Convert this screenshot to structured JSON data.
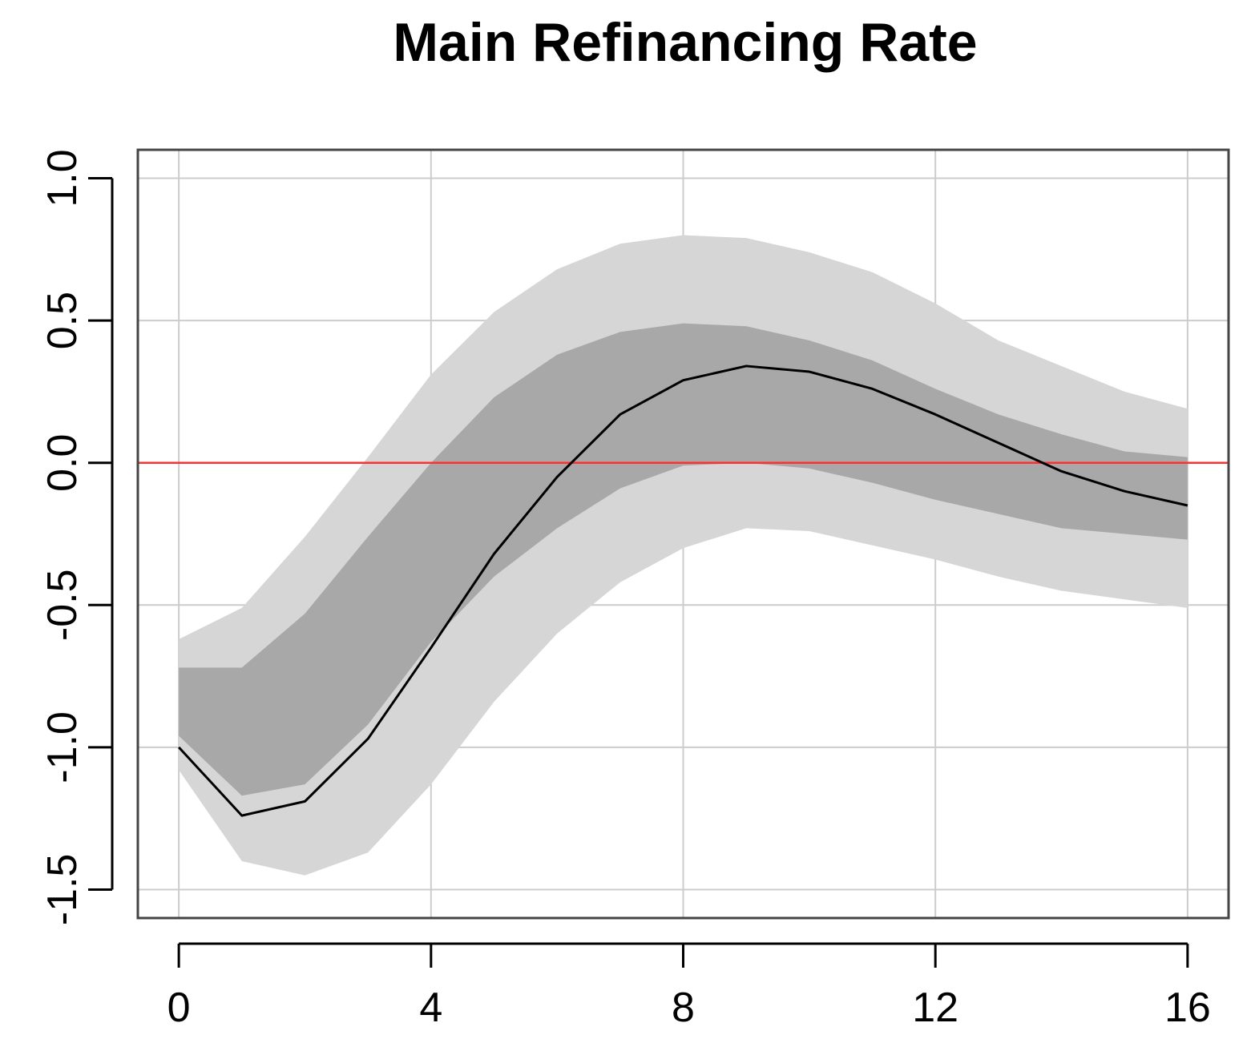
{
  "chart_data": {
    "type": "line",
    "title": "Main Refinancing Rate",
    "xlabel": "",
    "ylabel": "",
    "xlim": [
      -0.65,
      16.65
    ],
    "ylim": [
      -1.6,
      1.1
    ],
    "x_ticks": [
      0,
      4,
      8,
      12,
      16
    ],
    "x_tick_labels": [
      "0",
      "4",
      "8",
      "12",
      "16"
    ],
    "y_ticks": [
      -1.5,
      -1.0,
      -0.5,
      0.0,
      0.5,
      1.0
    ],
    "y_tick_labels": [
      "-1.5",
      "-1.0",
      "-0.5",
      "0.0",
      "0.5",
      "1.0"
    ],
    "grid": true,
    "x": [
      0,
      1,
      2,
      3,
      4,
      5,
      6,
      7,
      8,
      9,
      10,
      11,
      12,
      13,
      14,
      15,
      16
    ],
    "series": [
      {
        "values": [
          -1.0,
          -1.24,
          -1.19,
          -0.97,
          -0.65,
          -0.32,
          -0.05,
          0.17,
          0.29,
          0.34,
          0.32,
          0.26,
          0.17,
          0.07,
          -0.03,
          -0.1,
          -0.15
        ],
        "color": "#000000"
      }
    ],
    "bands": [
      {
        "lower": [
          -1.08,
          -1.4,
          -1.45,
          -1.37,
          -1.13,
          -0.84,
          -0.6,
          -0.42,
          -0.3,
          -0.23,
          -0.24,
          -0.29,
          -0.34,
          -0.4,
          -0.45,
          -0.48,
          -0.51
        ],
        "upper": [
          -0.62,
          -0.51,
          -0.26,
          0.02,
          0.31,
          0.53,
          0.68,
          0.77,
          0.8,
          0.79,
          0.74,
          0.67,
          0.56,
          0.43,
          0.34,
          0.25,
          0.19
        ],
        "color": "#d6d6d6"
      },
      {
        "lower": [
          -0.96,
          -1.17,
          -1.13,
          -0.92,
          -0.63,
          -0.4,
          -0.23,
          -0.09,
          -0.01,
          0.0,
          -0.02,
          -0.07,
          -0.13,
          -0.18,
          -0.23,
          -0.25,
          -0.27
        ],
        "upper": [
          -0.72,
          -0.72,
          -0.53,
          -0.26,
          0.0,
          0.23,
          0.38,
          0.46,
          0.49,
          0.48,
          0.43,
          0.36,
          0.26,
          0.17,
          0.1,
          0.04,
          0.02
        ],
        "color": "#a8a8a8"
      }
    ],
    "reference_line": {
      "y": 0.0,
      "color": "#ff3030"
    },
    "grid_color": "#cccccc"
  }
}
